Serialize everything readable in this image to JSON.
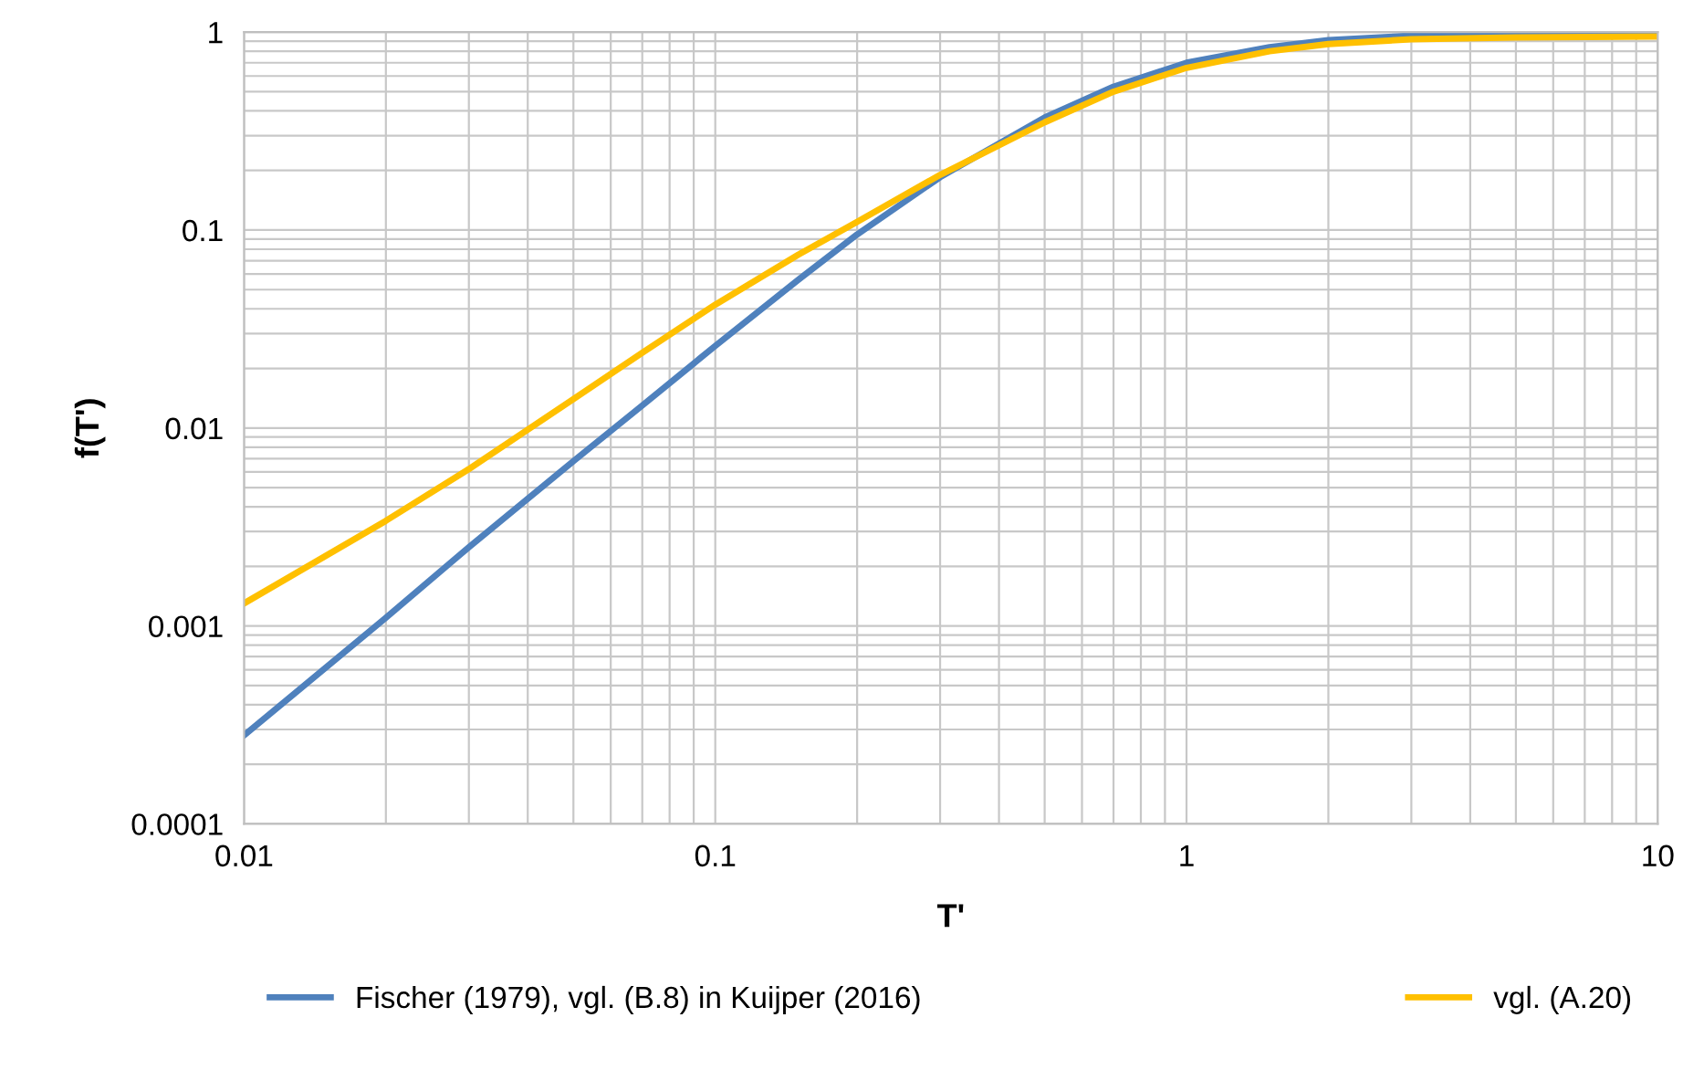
{
  "chart_data": {
    "type": "line",
    "xlabel": "T'",
    "ylabel": "f(T')",
    "log": "xy",
    "grid": true,
    "legend": "bottom",
    "marker": "none",
    "line_style": "solid",
    "xlim": [
      0.01,
      10
    ],
    "xticks": [
      0.01,
      0.1,
      1,
      10
    ],
    "ylim": [
      0.0001,
      1
    ],
    "yticks": [
      0.0001,
      0.001,
      0.01,
      0.1,
      1
    ],
    "series": [
      {
        "name": "Fischer (1979), vgl. (B.8) in Kuijper (2016)",
        "color": "#4f81bd",
        "x": [
          0.01,
          0.02,
          0.03,
          0.05,
          0.07,
          0.1,
          0.15,
          0.2,
          0.3,
          0.5,
          0.7,
          1,
          1.5,
          2,
          3,
          5,
          10
        ],
        "values": [
          0.00028,
          0.0011,
          0.0025,
          0.0068,
          0.013,
          0.026,
          0.056,
          0.095,
          0.185,
          0.37,
          0.53,
          0.7,
          0.84,
          0.91,
          0.96,
          0.99,
          0.99
        ]
      },
      {
        "name": "vgl. (A.20)",
        "color": "#ffc000",
        "x": [
          0.01,
          0.02,
          0.03,
          0.05,
          0.07,
          0.1,
          0.15,
          0.2,
          0.3,
          0.5,
          0.7,
          1,
          1.5,
          2,
          3,
          5,
          10
        ],
        "values": [
          0.0013,
          0.0034,
          0.0062,
          0.014,
          0.024,
          0.042,
          0.075,
          0.11,
          0.19,
          0.35,
          0.5,
          0.66,
          0.8,
          0.87,
          0.92,
          0.94,
          0.95
        ]
      }
    ]
  }
}
